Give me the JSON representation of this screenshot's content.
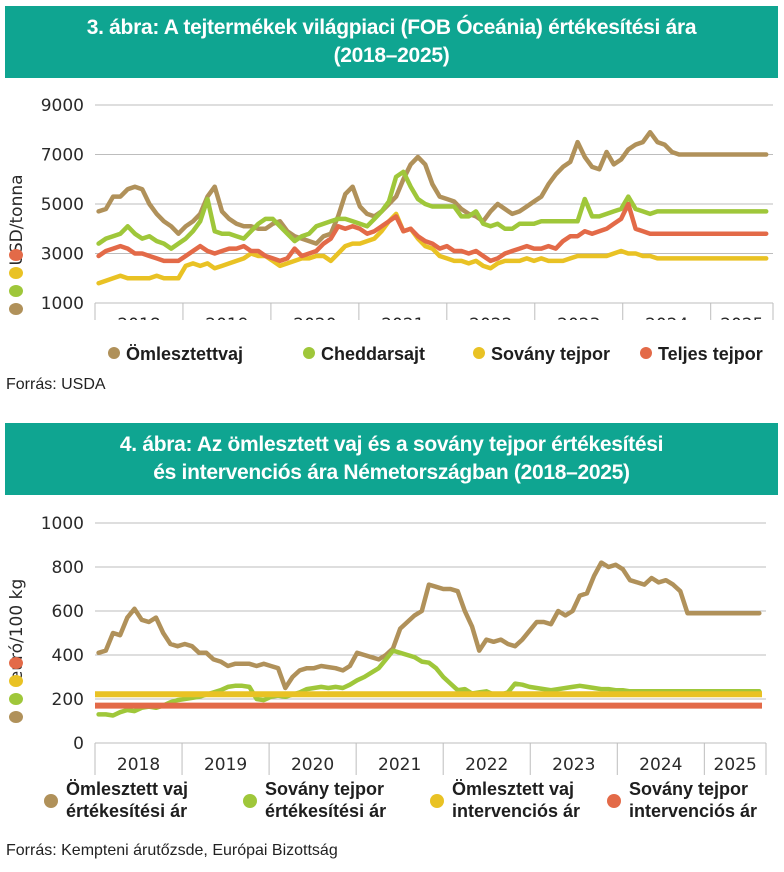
{
  "figure3": {
    "title_line1": "3. ábra: A tejtermékek világpiaci (FOB Óceánia) értékesítési ára",
    "title_line2": "(2018–2025)",
    "source": "Forrás: USDA"
  },
  "figure4": {
    "title_line1": "4. ábra: Az ömlesztett vaj és a sovány tejpor értékesítési",
    "title_line2": "és intervenciós ára Németországban (2018–2025)",
    "source": "Forrás: Kempteni árutőzsde, Európai Bizottság"
  },
  "chart_data": [
    {
      "type": "line",
      "title": "3. ábra: A tejtermékek világpiaci (FOB Óceánia) értékesítési ára (2018–2025)",
      "xlabel": "",
      "ylabel": "USD/tonna",
      "ylim": [
        1000,
        9000
      ],
      "yticks": [
        1000,
        3000,
        5000,
        7000,
        9000
      ],
      "ytick_labels": [
        "1000",
        "3000",
        "5000",
        "7000",
        "9000"
      ],
      "categories": [
        "2018",
        "2019",
        "2020",
        "2021",
        "2022",
        "2023",
        "2024",
        "2025"
      ],
      "x_unit": "monthly, Jan 2018 – Sep 2025",
      "grid": true,
      "legend_position": "bottom",
      "series": [
        {
          "name": "Ömlesztettvaj",
          "color": "#b0915a",
          "values": [
            4700,
            4800,
            5300,
            5300,
            5600,
            5700,
            5600,
            5000,
            4600,
            4300,
            4100,
            3800,
            4100,
            4300,
            4600,
            5300,
            5700,
            4700,
            4400,
            4200,
            4100,
            4100,
            4000,
            4000,
            4200,
            4300,
            3900,
            3700,
            3600,
            3500,
            3400,
            3700,
            3800,
            4500,
            5400,
            5700,
            4900,
            4600,
            4500,
            4700,
            5000,
            5300,
            6000,
            6600,
            6900,
            6600,
            5800,
            5300,
            5200,
            5100,
            4800,
            4600,
            4500,
            4300,
            4700,
            5000,
            4800,
            4600,
            4700,
            4900,
            5100,
            5300,
            5800,
            6200,
            6500,
            6700,
            7500,
            6900,
            6500,
            6400,
            7100,
            6600,
            6800,
            7200,
            7400,
            7500,
            7900,
            7500,
            7400,
            7100,
            7000,
            7000,
            7000,
            7000,
            7000,
            7000,
            7000,
            7000,
            7000,
            7000,
            7000,
            7000,
            7000
          ],
          "note": "series spans Jan 2018 to ~Sep 2025"
        },
        {
          "name": "Cheddarsajt",
          "color": "#9fc73a",
          "values": [
            3400,
            3600,
            3700,
            3800,
            4100,
            3800,
            3600,
            3700,
            3500,
            3400,
            3200,
            3400,
            3600,
            3900,
            4300,
            5200,
            3900,
            3800,
            3800,
            3700,
            3600,
            3900,
            4200,
            4400,
            4400,
            4100,
            3800,
            3500,
            3700,
            3800,
            4100,
            4200,
            4300,
            4400,
            4400,
            4300,
            4200,
            4100,
            4400,
            4700,
            5100,
            6100,
            6300,
            5700,
            5200,
            5000,
            4900,
            4900,
            4900,
            4900,
            4500,
            4500,
            4700,
            4200,
            4100,
            4200,
            4000,
            4000,
            4200,
            4200,
            4200,
            4300,
            4300,
            4300,
            4300,
            4300,
            4300,
            5200,
            4500,
            4500,
            4600,
            4700,
            4800,
            5300,
            4800,
            4700,
            4600,
            4700,
            4700,
            4700,
            4700,
            4700,
            4700,
            4700,
            4700,
            4700,
            4700,
            4700,
            4700,
            4700,
            4700,
            4700,
            4700
          ]
        },
        {
          "name": "Sovány tejpor",
          "color": "#e9c224",
          "values": [
            1800,
            1900,
            2000,
            2100,
            2000,
            2000,
            2000,
            2000,
            2100,
            2000,
            2000,
            2000,
            2500,
            2600,
            2500,
            2600,
            2400,
            2500,
            2600,
            2700,
            2800,
            3000,
            2900,
            2900,
            2700,
            2500,
            2600,
            2700,
            2800,
            2800,
            2900,
            2900,
            2700,
            3000,
            3300,
            3400,
            3400,
            3500,
            3600,
            3900,
            4300,
            4600,
            3900,
            4000,
            3600,
            3300,
            3200,
            2900,
            2800,
            2700,
            2700,
            2600,
            2700,
            2500,
            2400,
            2600,
            2700,
            2700,
            2700,
            2800,
            2700,
            2800,
            2700,
            2700,
            2700,
            2800,
            2900,
            2900,
            2900,
            2900,
            2900,
            3000,
            3100,
            3000,
            3000,
            2900,
            2900,
            2800,
            2800,
            2800,
            2800,
            2800,
            2800,
            2800,
            2800,
            2800,
            2800,
            2800,
            2800,
            2800,
            2800,
            2800,
            2800
          ]
        },
        {
          "name": "Teljes tejpor",
          "color": "#e36a48",
          "values": [
            2900,
            3100,
            3200,
            3300,
            3200,
            3000,
            3000,
            2900,
            2800,
            2700,
            2700,
            2700,
            2900,
            3100,
            3300,
            3100,
            3000,
            3100,
            3200,
            3200,
            3300,
            3100,
            3100,
            2900,
            2800,
            2700,
            2800,
            3200,
            2900,
            3000,
            3100,
            3400,
            3600,
            4100,
            4000,
            4100,
            4000,
            3800,
            3900,
            4100,
            4300,
            4500,
            3900,
            4000,
            3700,
            3500,
            3400,
            3200,
            3300,
            3100,
            3100,
            3000,
            3100,
            2900,
            2700,
            2800,
            3000,
            3100,
            3200,
            3300,
            3200,
            3200,
            3300,
            3200,
            3500,
            3700,
            3700,
            3900,
            3800,
            3900,
            4000,
            4200,
            4400,
            5000,
            4000,
            3900,
            3800,
            3800,
            3800,
            3800,
            3800,
            3800,
            3800,
            3800,
            3800,
            3800,
            3800,
            3800,
            3800,
            3800,
            3800,
            3800,
            3800
          ]
        }
      ]
    },
    {
      "type": "line",
      "title": "4. ábra: Az ömlesztett vaj és a sovány tejpor értékesítési és intervenciós ára Németországban (2018–2025)",
      "xlabel": "",
      "ylabel": "euró/100 kg",
      "ylim": [
        0,
        1000
      ],
      "yticks": [
        0,
        200,
        400,
        600,
        800,
        1000
      ],
      "ytick_labels": [
        "0",
        "200",
        "400",
        "600",
        "800",
        "1000"
      ],
      "categories": [
        "2018",
        "2019",
        "2020",
        "2021",
        "2022",
        "2023",
        "2024",
        "2025"
      ],
      "x_unit": "monthly, Jan 2018 – Sep 2025",
      "grid": true,
      "legend_position": "bottom",
      "series": [
        {
          "name": "Ömlesztett vaj értékesítési ár",
          "color": "#b0915a",
          "values": [
            410,
            420,
            500,
            490,
            570,
            610,
            560,
            550,
            570,
            500,
            450,
            440,
            450,
            440,
            410,
            410,
            380,
            370,
            350,
            360,
            360,
            360,
            350,
            360,
            350,
            340,
            250,
            300,
            330,
            340,
            340,
            350,
            345,
            340,
            330,
            350,
            410,
            400,
            390,
            380,
            400,
            430,
            520,
            550,
            580,
            600,
            720,
            710,
            700,
            700,
            690,
            600,
            530,
            420,
            470,
            460,
            470,
            450,
            440,
            470,
            510,
            550,
            550,
            540,
            600,
            580,
            600,
            670,
            680,
            760,
            820,
            800,
            810,
            790,
            740,
            730,
            720,
            750,
            730,
            740,
            720,
            690,
            590,
            590,
            590,
            590,
            590,
            590,
            590,
            590,
            590,
            590,
            590
          ]
        },
        {
          "name": "Sovány tejpor értékesítési ár",
          "color": "#9fc73a",
          "values": [
            130,
            130,
            125,
            140,
            150,
            145,
            160,
            165,
            160,
            170,
            185,
            195,
            200,
            205,
            210,
            220,
            230,
            240,
            255,
            260,
            260,
            255,
            200,
            195,
            210,
            215,
            210,
            220,
            230,
            245,
            250,
            255,
            250,
            255,
            250,
            265,
            285,
            300,
            320,
            340,
            380,
            420,
            410,
            400,
            390,
            370,
            365,
            340,
            300,
            270,
            240,
            245,
            225,
            230,
            235,
            220,
            220,
            230,
            270,
            265,
            255,
            250,
            245,
            240,
            245,
            250,
            255,
            260,
            255,
            250,
            245,
            245,
            240,
            240,
            235,
            235,
            235,
            235,
            235,
            235,
            235,
            235,
            235,
            235,
            235,
            235,
            235,
            235,
            235,
            235,
            235,
            235,
            235
          ]
        },
        {
          "name": "Ömlesztett vaj intervenciós ár",
          "color": "#e9c224",
          "values_constant": 221.75
        },
        {
          "name": "Sovány tejpor intervenciós ár",
          "color": "#e36a48",
          "values_constant": 169.8
        }
      ]
    }
  ],
  "legend1": [
    {
      "label": "Ömlesztettvaj",
      "color": "#b0915a"
    },
    {
      "label": "Cheddarsajt",
      "color": "#9fc73a"
    },
    {
      "label": "Sovány tejpor",
      "color": "#e9c224"
    },
    {
      "label": "Teljes tejpor",
      "color": "#e36a48"
    }
  ],
  "legend2": [
    {
      "line1": "Ömlesztett vaj",
      "line2": "értékesítési ár",
      "color": "#b0915a"
    },
    {
      "line1": "Sovány tejpor",
      "line2": "értékesítési ár",
      "color": "#9fc73a"
    },
    {
      "line1": "Ömlesztett vaj",
      "line2": "intervenciós ár",
      "color": "#e9c224"
    },
    {
      "line1": "Sovány tejpor",
      "line2": "intervenciós ár",
      "color": "#e36a48"
    }
  ],
  "colors": {
    "banner": "#0fa591",
    "grid": "#bdbdbd"
  }
}
